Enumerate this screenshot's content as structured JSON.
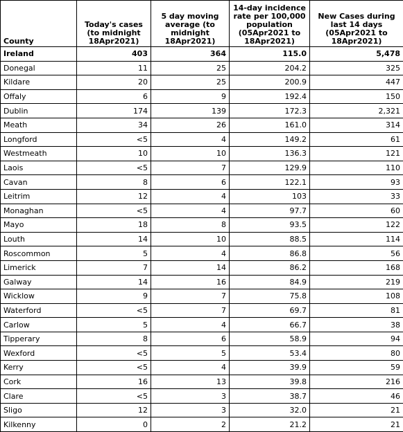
{
  "table": {
    "headers": [
      "County",
      "Today's cases (to midnight 18Apr2021)",
      "5 day moving average (to midnight 18Apr2021)",
      "14-day incidence rate per 100,000 population (05Apr2021 to 18Apr2021)",
      "New Cases during last 14 days (05Apr2021 to 18Apr2021)"
    ],
    "rows": [
      [
        "Ireland",
        "403",
        "364",
        "115.0",
        "5,478"
      ],
      [
        "Donegal",
        "11",
        "25",
        "204.2",
        "325"
      ],
      [
        "Kildare",
        "20",
        "25",
        "200.9",
        "447"
      ],
      [
        "Offaly",
        "6",
        "9",
        "192.4",
        "150"
      ],
      [
        "Dublin",
        "174",
        "139",
        "172.3",
        "2,321"
      ],
      [
        "Meath",
        "34",
        "26",
        "161.0",
        "314"
      ],
      [
        "Longford",
        "<5",
        "4",
        "149.2",
        "61"
      ],
      [
        "Westmeath",
        "10",
        "10",
        "136.3",
        "121"
      ],
      [
        "Laois",
        "<5",
        "7",
        "129.9",
        "110"
      ],
      [
        "Cavan",
        "8",
        "6",
        "122.1",
        "93"
      ],
      [
        "Leitrim",
        "12",
        "4",
        "103",
        "33"
      ],
      [
        "Monaghan",
        "<5",
        "4",
        "97.7",
        "60"
      ],
      [
        "Mayo",
        "18",
        "8",
        "93.5",
        "122"
      ],
      [
        "Louth",
        "14",
        "10",
        "88.5",
        "114"
      ],
      [
        "Roscommon",
        "5",
        "4",
        "86.8",
        "56"
      ],
      [
        "Limerick",
        "7",
        "14",
        "86.2",
        "168"
      ],
      [
        "Galway",
        "14",
        "16",
        "84.9",
        "219"
      ],
      [
        "Wicklow",
        "9",
        "7",
        "75.8",
        "108"
      ],
      [
        "Waterford",
        "<5",
        "7",
        "69.7",
        "81"
      ],
      [
        "Carlow",
        "5",
        "4",
        "66.7",
        "38"
      ],
      [
        "Tipperary",
        "8",
        "6",
        "58.9",
        "94"
      ],
      [
        "Wexford",
        "<5",
        "5",
        "53.4",
        "80"
      ],
      [
        "Kerry",
        "<5",
        "4",
        "39.9",
        "59"
      ],
      [
        "Cork",
        "16",
        "13",
        "39.8",
        "216"
      ],
      [
        "Clare",
        "<5",
        "3",
        "38.7",
        "46"
      ],
      [
        "Sligo",
        "12",
        "3",
        "32.0",
        "21"
      ],
      [
        "Kilkenny",
        "0",
        "2",
        "21.2",
        "21"
      ]
    ]
  }
}
